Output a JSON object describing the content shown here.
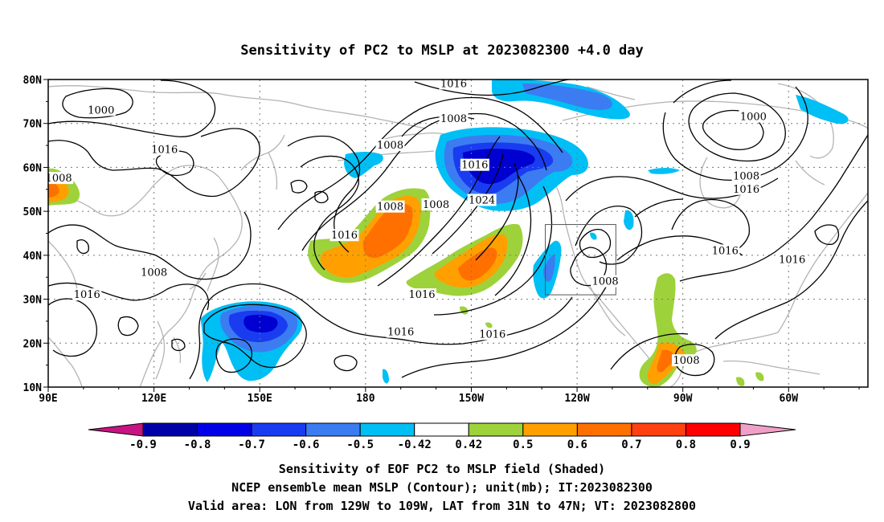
{
  "title": "Sensitivity of PC2 to MSLP at 2023082300 +4.0 day",
  "axes": {
    "lat_ticks": [
      "80N",
      "70N",
      "60N",
      "50N",
      "40N",
      "30N",
      "20N",
      "10N"
    ],
    "lon_ticks": [
      "90E",
      "120E",
      "150E",
      "180",
      "150W",
      "120W",
      "90W",
      "60W"
    ]
  },
  "contour_labels": [
    {
      "text": "1016",
      "lon": 205,
      "lat": 79
    },
    {
      "text": "1000",
      "lon": 105,
      "lat": 73
    },
    {
      "text": "1008",
      "lon": 205,
      "lat": 71
    },
    {
      "text": "1000",
      "lon": 290,
      "lat": 71.5
    },
    {
      "text": "1016",
      "lon": 123,
      "lat": 64
    },
    {
      "text": "1008",
      "lon": 187,
      "lat": 65
    },
    {
      "text": "1008",
      "lon": 93,
      "lat": 57.5
    },
    {
      "text": "1016",
      "lon": 211,
      "lat": 60.5
    },
    {
      "text": "1024",
      "lon": 213,
      "lat": 52.5
    },
    {
      "text": "1008",
      "lon": 288,
      "lat": 58
    },
    {
      "text": "1016",
      "lon": 288,
      "lat": 55
    },
    {
      "text": "1008",
      "lon": 187,
      "lat": 51
    },
    {
      "text": "1008",
      "lon": 200,
      "lat": 51.5
    },
    {
      "text": "1016",
      "lon": 174,
      "lat": 44.5
    },
    {
      "text": "1016",
      "lon": 282,
      "lat": 41
    },
    {
      "text": "1016",
      "lon": 301,
      "lat": 39
    },
    {
      "text": "1008",
      "lon": 120,
      "lat": 36
    },
    {
      "text": "1008",
      "lon": 248,
      "lat": 34
    },
    {
      "text": "1016",
      "lon": 101,
      "lat": 31
    },
    {
      "text": "1016",
      "lon": 196,
      "lat": 31
    },
    {
      "text": "1016",
      "lon": 190,
      "lat": 22.5
    },
    {
      "text": "1016",
      "lon": 216,
      "lat": 22
    },
    {
      "text": "1008",
      "lon": 271,
      "lat": 16
    }
  ],
  "colorbar": {
    "labels": [
      "-0.9",
      "-0.8",
      "-0.7",
      "-0.6",
      "-0.5",
      "-0.42",
      "0.42",
      "0.5",
      "0.6",
      "0.7",
      "0.8",
      "0.9"
    ],
    "colors": [
      "#0000a8",
      "#0000e8",
      "#1a3cf0",
      "#3c7cf2",
      "#00bff5",
      "#ffffff",
      "#9ed23a",
      "#ffa000",
      "#ff7000",
      "#ff4010",
      "#ff0000"
    ],
    "below_color": "#c81482",
    "above_color": "#f0a0c8"
  },
  "valid_area": {
    "lon_min": 231,
    "lon_max": 251,
    "lat_min": 31,
    "lat_max": 47
  },
  "captions": [
    "Sensitivity of EOF PC2 to MSLP field (Shaded)",
    "NCEP ensemble mean MSLP (Contour); unit(mb); IT:2023082300",
    "Valid area: LON from 129W to 109W, LAT from 31N to 47N; VT: 2023082800"
  ],
  "shading_colors": {
    "blue_dark": "#0000d0",
    "blue": "#1a3cf0",
    "blue_mid": "#3c7cf2",
    "cyan": "#00bff5",
    "green": "#9ed23a",
    "orange": "#ffa000",
    "orange_dark": "#ff7000",
    "red": "#ff4010"
  },
  "coast_color": "#b4b4b4"
}
